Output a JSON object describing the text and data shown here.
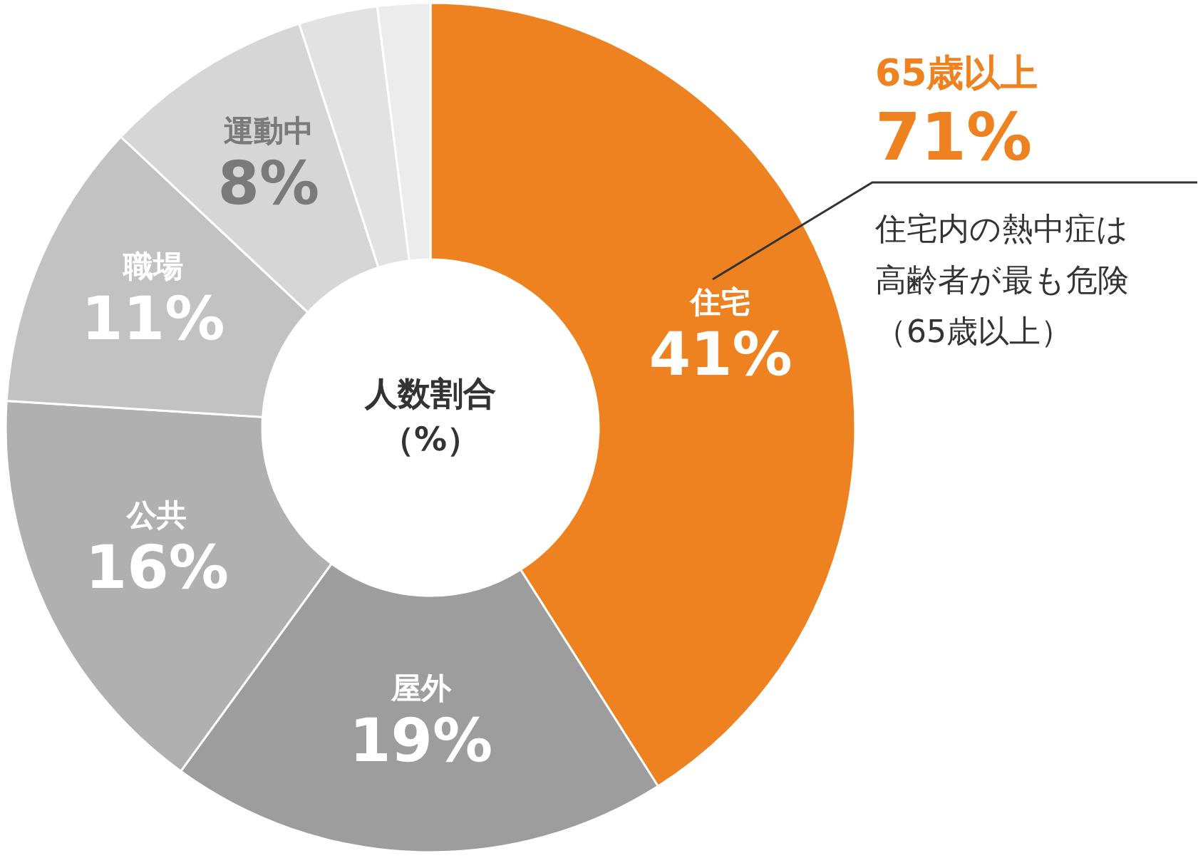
{
  "chart_data": {
    "type": "donut",
    "title": "人数割合",
    "subtitle": "（%）",
    "categories": [
      "住宅",
      "屋外",
      "公共",
      "職場",
      "運動中",
      null,
      null
    ],
    "values": [
      41,
      19,
      16,
      11,
      8,
      3,
      2
    ],
    "value_labels": [
      "41%",
      "19%",
      "16%",
      "11%",
      "8%",
      null,
      null
    ],
    "colors": [
      "#ee8220",
      "#9d9d9d",
      "#b0b0b0",
      "#c2c2c2",
      "#d6d6d6",
      "#e2e2e2",
      "#ececec"
    ],
    "annotations": [
      "65歳以上",
      "71%",
      "住宅内の熱中症は",
      "高齢者が最も危険",
      "（65歳以上）"
    ]
  }
}
